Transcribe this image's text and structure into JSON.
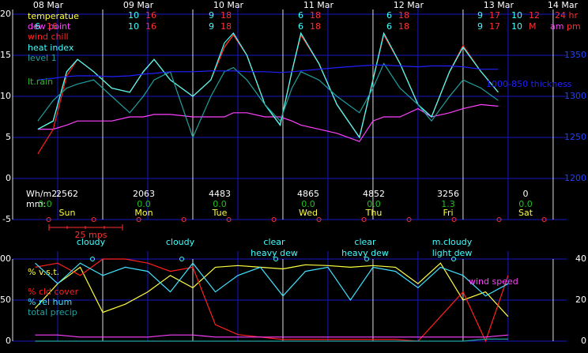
{
  "chart_data": [
    {
      "type": "line",
      "xlim": [
        0,
        6.15
      ],
      "xticks": [
        {
          "value": 0,
          "label": "08 Mar"
        },
        {
          "value": 1,
          "label": "09 Mar"
        },
        {
          "value": 2,
          "label": "10 Mar"
        },
        {
          "value": 3,
          "label": "11 Mar"
        },
        {
          "value": 4,
          "label": "12 Mar"
        },
        {
          "value": 5,
          "label": "13 Mar"
        },
        {
          "value": 6,
          "label": "14 Mar"
        }
      ],
      "ylim": [
        -5,
        20
      ],
      "yticks": [
        -5,
        0,
        5,
        10,
        15,
        20
      ],
      "y2lim": [
        1150,
        1400
      ],
      "y2ticks": [
        1200,
        1250,
        1300,
        1350
      ],
      "grid": true,
      "legend": "top-left",
      "x": [
        0.28,
        0.45,
        0.6,
        0.72,
        0.9,
        1.1,
        1.3,
        1.45,
        1.57,
        1.75,
        2.0,
        2.2,
        2.35,
        2.45,
        2.6,
        2.8,
        2.97,
        3.1,
        3.2,
        3.4,
        3.6,
        3.85,
        4.0,
        4.12,
        4.3,
        4.5,
        4.65,
        4.85,
        5.0,
        5.2,
        5.39
      ],
      "series": [
        {
          "name": "temperatue",
          "color": "#ffff40",
          "values": [
            6,
            7,
            13,
            14.5,
            13,
            11,
            10.5,
            13,
            14.5,
            12,
            10,
            12,
            16,
            17.5,
            15,
            9,
            6.5,
            13,
            17.5,
            14,
            9,
            5,
            12,
            17.5,
            14,
            9,
            7.5,
            13,
            16,
            13,
            10.5
          ]
        },
        {
          "name": "dew point",
          "color": "#ff40ff",
          "values": [
            6,
            6,
            6.5,
            7,
            7,
            7,
            7.5,
            7.5,
            7.8,
            7.8,
            7.5,
            7.5,
            7.5,
            8,
            8,
            7.5,
            7.5,
            7,
            6.5,
            6,
            5.5,
            4.5,
            7,
            7.5,
            7.5,
            8.5,
            7.5,
            8,
            8.5,
            9,
            8.8
          ]
        },
        {
          "name": "wind chill",
          "color": "#ff2020",
          "values": [
            3,
            6,
            12.5,
            14.5,
            13,
            11,
            10.5,
            13,
            14.5,
            12,
            10,
            12,
            16,
            17.5,
            15,
            9,
            6.5,
            13,
            17.5,
            14,
            9,
            5,
            12,
            17.5,
            14,
            9,
            7.5,
            13,
            16.2,
            13,
            10.5
          ]
        },
        {
          "name": "heat index",
          "color": "#40ffff",
          "values": [
            6,
            7,
            13,
            14.5,
            13,
            11,
            10.5,
            13,
            14.5,
            12,
            10,
            12,
            16.5,
            17.7,
            15,
            9,
            6.5,
            13,
            17.7,
            14,
            9,
            5,
            12,
            17.7,
            14,
            9,
            7.5,
            13,
            16,
            13,
            10.5
          ]
        },
        {
          "name": "level 1",
          "color": "#20a0a0",
          "values": [
            7,
            9.5,
            11,
            11.5,
            12,
            10,
            8,
            10,
            12,
            13,
            5,
            10,
            13,
            13.5,
            12,
            9,
            7,
            11,
            13,
            12,
            10,
            8,
            11,
            14,
            11,
            9,
            7,
            10,
            12,
            11,
            9.5
          ]
        },
        {
          "name": "1000-850 thickness",
          "color": "#2020ff",
          "axis": "y2",
          "values": [
            1320,
            1322,
            1324,
            1325,
            1325,
            1324,
            1325,
            1327,
            1328,
            1330,
            1330,
            1331,
            1331,
            1331,
            1330,
            1330,
            1329,
            1330,
            1331,
            1333,
            1335,
            1337,
            1338,
            1338,
            1337,
            1336,
            1337,
            1337,
            1336,
            1333,
            1333
          ]
        }
      ],
      "annotations": [
        "lt.rain"
      ],
      "label_24hr": "24 hr",
      "label_am": "am",
      "label_pm": "pm",
      "minmax_24hr": [
        null,
        [
          10,
          16
        ],
        [
          9,
          18
        ],
        [
          6,
          18
        ],
        [
          6,
          18
        ],
        [
          9,
          17
        ],
        [
          10,
          12
        ]
      ],
      "minmax_ampm": [
        [
          6,
          16
        ],
        [
          10,
          16
        ],
        [
          9,
          18
        ],
        [
          6,
          18
        ],
        [
          6,
          18
        ],
        [
          9,
          17
        ],
        [
          10,
          "M"
        ]
      ],
      "energy_label": "Wh/m2:",
      "energy": [
        2562,
        2063,
        4483,
        4865,
        4852,
        3256,
        0
      ],
      "rain_label": "mm:",
      "rain": [
        "0.0",
        "0.0",
        "0.0",
        "0.0",
        "0.0",
        "1.3",
        "0.0"
      ],
      "days": [
        "Sun",
        "Mon",
        "Tue",
        "Wed",
        "Thu",
        "Fri",
        "Sat"
      ],
      "scale_label": "25 mps"
    },
    {
      "type": "line",
      "xlim": [
        0,
        6.15
      ],
      "xticks": [
        0,
        1,
        2,
        3,
        4,
        5,
        6
      ],
      "ylim": [
        0,
        100
      ],
      "yticks": [
        0,
        50,
        100
      ],
      "y2lim": [
        0,
        40
      ],
      "y2ticks": [
        0,
        20,
        40
      ],
      "grid": true,
      "x": [
        0.25,
        0.5,
        0.75,
        1.0,
        1.25,
        1.5,
        1.75,
        2.0,
        2.25,
        2.5,
        2.75,
        3.0,
        3.25,
        3.5,
        3.75,
        4.0,
        4.25,
        4.5,
        4.75,
        5.0,
        5.25,
        5.5
      ],
      "series": [
        {
          "name": "% v.s.t.",
          "color": "#ffff40",
          "values": [
            40,
            70,
            90,
            35,
            45,
            60,
            80,
            65,
            90,
            92,
            90,
            88,
            93,
            92,
            90,
            92,
            90,
            70,
            95,
            50,
            60,
            30
          ]
        },
        {
          "name": "% cld cover",
          "color": "#ff2020",
          "values": [
            90,
            95,
            80,
            100,
            100,
            95,
            85,
            90,
            20,
            8,
            5,
            2,
            2,
            2,
            2,
            2,
            2,
            0,
            30,
            60,
            0,
            80
          ]
        },
        {
          "name": "% rel hum",
          "color": "#40e0ff",
          "values": [
            95,
            70,
            95,
            80,
            90,
            85,
            60,
            95,
            60,
            80,
            90,
            55,
            85,
            90,
            50,
            90,
            85,
            65,
            90,
            80,
            55,
            70
          ]
        },
        {
          "name": "total precip",
          "color": "#20a0a0",
          "axis": "y2",
          "values": [
            0,
            0,
            0,
            0,
            0,
            0,
            0,
            0,
            0,
            0,
            0,
            0,
            0,
            0,
            0,
            0,
            0,
            0,
            0,
            0,
            1,
            1
          ]
        },
        {
          "name": "wind speed",
          "color": "#ff40ff",
          "axis": "y2",
          "values": [
            3,
            3,
            2,
            2,
            2,
            2,
            3,
            3,
            2,
            2,
            2,
            2,
            2,
            2,
            2,
            2,
            2,
            2,
            2,
            2,
            2,
            3
          ]
        }
      ],
      "conditions": [
        [
          "cloudy"
        ],
        [
          "cloudy"
        ],
        [
          "clear",
          "heavy dew"
        ],
        [
          "clear",
          "heavy dew"
        ],
        [
          "m.cloudy",
          "light dew"
        ]
      ]
    }
  ]
}
